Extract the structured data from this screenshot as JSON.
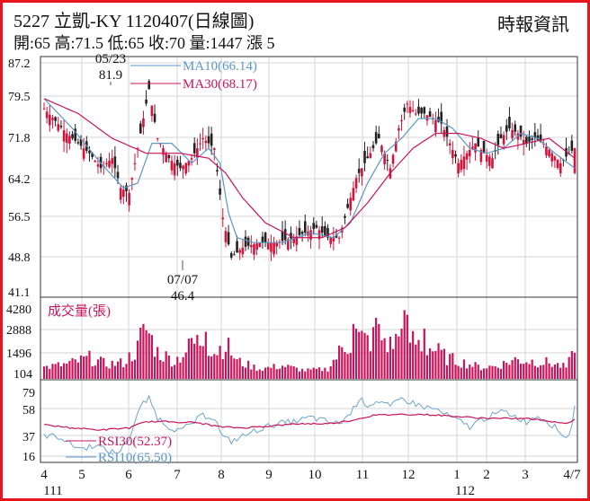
{
  "header": {
    "title": "5227  立凱-KY 1120407(日線圖)",
    "quote": "開:65 高:71.5 低:65 收:70 量:1447 漲 5",
    "source": "時報資訊"
  },
  "colors": {
    "frame": "#e8141e",
    "up_candle": "#d2143c",
    "down_candle": "#222222",
    "ma10": "#5b97c8",
    "ma30": "#c8145a",
    "volume": "#c8145a",
    "rsi10": "#6fa3cc",
    "rsi30": "#c8145a"
  },
  "chart_data": [
    {
      "type": "candlestick",
      "panel": "price",
      "y_ticks": [
        "87.2",
        "79.5",
        "71.8",
        "64.2",
        "56.5",
        "48.8",
        "41.1"
      ],
      "ylim": [
        41.1,
        87.2
      ],
      "grid": true,
      "x_ticks": [
        "4",
        "5",
        "6",
        "7",
        "8",
        "9",
        "10",
        "11",
        "12",
        "1",
        "2",
        "3",
        "4/7"
      ],
      "x_year_labels": [
        "111",
        "112"
      ],
      "legend": [
        "MA10(66.14)",
        "MA30(68.17)"
      ],
      "annotations": [
        {
          "date": "05/23",
          "value": "81.9"
        },
        {
          "date": "07/07",
          "value": "46.4"
        }
      ],
      "close_path": [
        [
          0,
          78
        ],
        [
          8,
          73
        ],
        [
          16,
          69
        ],
        [
          20,
          66
        ],
        [
          24,
          68
        ],
        [
          27,
          62
        ],
        [
          30,
          61
        ],
        [
          33,
          70
        ],
        [
          36,
          79
        ],
        [
          37,
          81.9
        ],
        [
          40,
          72
        ],
        [
          44,
          68
        ],
        [
          48,
          66
        ],
        [
          52,
          68
        ],
        [
          56,
          72
        ],
        [
          60,
          70
        ],
        [
          63,
          56
        ],
        [
          66,
          48
        ],
        [
          70,
          50
        ],
        [
          76,
          51
        ],
        [
          82,
          51
        ],
        [
          88,
          52
        ],
        [
          92,
          53
        ],
        [
          96,
          54
        ],
        [
          100,
          52
        ],
        [
          104,
          52
        ],
        [
          107,
          58
        ],
        [
          110,
          64
        ],
        [
          114,
          68
        ],
        [
          118,
          72
        ],
        [
          120,
          69
        ],
        [
          122,
          66
        ],
        [
          125,
          74
        ],
        [
          128,
          79
        ],
        [
          131,
          77
        ],
        [
          134,
          77
        ],
        [
          137,
          76
        ],
        [
          140,
          75
        ],
        [
          143,
          71
        ],
        [
          146,
          67
        ],
        [
          149,
          69
        ],
        [
          152,
          71
        ],
        [
          155,
          69
        ],
        [
          158,
          68
        ],
        [
          161,
          72
        ],
        [
          164,
          74
        ],
        [
          167,
          73
        ],
        [
          170,
          71
        ],
        [
          173,
          72
        ],
        [
          176,
          71
        ],
        [
          179,
          69
        ],
        [
          182,
          67
        ],
        [
          185,
          69
        ],
        [
          187,
          70
        ]
      ],
      "ma10_path": [
        [
          0,
          80
        ],
        [
          10,
          74
        ],
        [
          20,
          67
        ],
        [
          28,
          62
        ],
        [
          33,
          63
        ],
        [
          38,
          71
        ],
        [
          45,
          71
        ],
        [
          52,
          67
        ],
        [
          58,
          70
        ],
        [
          62,
          67
        ],
        [
          65,
          57
        ],
        [
          68,
          52
        ],
        [
          74,
          51
        ],
        [
          84,
          51
        ],
        [
          94,
          53
        ],
        [
          102,
          52
        ],
        [
          108,
          55
        ],
        [
          114,
          63
        ],
        [
          120,
          69
        ],
        [
          126,
          72
        ],
        [
          132,
          76
        ],
        [
          138,
          76
        ],
        [
          144,
          74
        ],
        [
          150,
          70
        ],
        [
          156,
          69
        ],
        [
          162,
          70
        ],
        [
          168,
          73
        ],
        [
          174,
          72
        ],
        [
          180,
          69
        ],
        [
          187,
          66
        ]
      ],
      "ma30_path": [
        [
          0,
          80
        ],
        [
          12,
          77
        ],
        [
          24,
          72
        ],
        [
          36,
          69
        ],
        [
          48,
          69
        ],
        [
          58,
          68
        ],
        [
          64,
          65
        ],
        [
          70,
          60
        ],
        [
          78,
          55
        ],
        [
          88,
          52
        ],
        [
          98,
          52
        ],
        [
          106,
          54
        ],
        [
          114,
          59
        ],
        [
          122,
          65
        ],
        [
          130,
          70
        ],
        [
          138,
          73
        ],
        [
          146,
          73
        ],
        [
          154,
          72
        ],
        [
          162,
          70
        ],
        [
          170,
          71
        ],
        [
          178,
          72
        ],
        [
          187,
          68
        ]
      ]
    },
    {
      "type": "bar",
      "panel": "volume",
      "title": "成交量(張)",
      "y_ticks": [
        "4280",
        "2888",
        "1496",
        "104"
      ],
      "ylim": [
        104,
        4280
      ],
      "last_value": 1447,
      "volume_path": [
        [
          0,
          500
        ],
        [
          8,
          700
        ],
        [
          16,
          1100
        ],
        [
          22,
          700
        ],
        [
          28,
          800
        ],
        [
          33,
          1700
        ],
        [
          35,
          3100
        ],
        [
          37,
          2600
        ],
        [
          40,
          1500
        ],
        [
          46,
          900
        ],
        [
          52,
          1900
        ],
        [
          56,
          2300
        ],
        [
          60,
          1500
        ],
        [
          64,
          2000
        ],
        [
          68,
          900
        ],
        [
          76,
          400
        ],
        [
          84,
          600
        ],
        [
          92,
          300
        ],
        [
          100,
          400
        ],
        [
          105,
          1700
        ],
        [
          110,
          2400
        ],
        [
          114,
          2200
        ],
        [
          118,
          2600
        ],
        [
          122,
          1900
        ],
        [
          126,
          2600
        ],
        [
          130,
          2200
        ],
        [
          134,
          1900
        ],
        [
          138,
          1600
        ],
        [
          142,
          1100
        ],
        [
          148,
          800
        ],
        [
          154,
          500
        ],
        [
          160,
          600
        ],
        [
          166,
          1000
        ],
        [
          172,
          900
        ],
        [
          178,
          800
        ],
        [
          184,
          500
        ],
        [
          187,
          1447
        ]
      ],
      "volume_peaks": [
        [
          35,
          3300
        ],
        [
          36,
          2900
        ],
        [
          37,
          2700
        ],
        [
          52,
          2400
        ],
        [
          57,
          2800
        ],
        [
          109,
          3300
        ],
        [
          110,
          3000
        ],
        [
          116,
          3100
        ],
        [
          117,
          3700
        ],
        [
          126,
          3000
        ],
        [
          127,
          4200
        ],
        [
          128,
          3900
        ],
        [
          134,
          3000
        ]
      ]
    },
    {
      "type": "line",
      "panel": "rsi",
      "y_ticks": [
        "79",
        "58",
        "37",
        "16"
      ],
      "ylim": [
        16,
        79
      ],
      "legend": [
        "RSI30(52.37)",
        "RSI10(65.50)"
      ],
      "rsi10_path": [
        [
          0,
          37
        ],
        [
          6,
          35
        ],
        [
          10,
          27
        ],
        [
          14,
          24
        ],
        [
          18,
          28
        ],
        [
          22,
          22
        ],
        [
          26,
          20
        ],
        [
          30,
          34
        ],
        [
          33,
          58
        ],
        [
          35,
          68
        ],
        [
          37,
          72
        ],
        [
          40,
          54
        ],
        [
          44,
          45
        ],
        [
          48,
          41
        ],
        [
          52,
          48
        ],
        [
          56,
          56
        ],
        [
          60,
          54
        ],
        [
          63,
          35
        ],
        [
          66,
          31
        ],
        [
          70,
          36
        ],
        [
          76,
          43
        ],
        [
          82,
          48
        ],
        [
          88,
          50
        ],
        [
          94,
          54
        ],
        [
          100,
          50
        ],
        [
          104,
          48
        ],
        [
          108,
          58
        ],
        [
          111,
          72
        ],
        [
          114,
          66
        ],
        [
          118,
          70
        ],
        [
          122,
          64
        ],
        [
          126,
          72
        ],
        [
          130,
          68
        ],
        [
          134,
          64
        ],
        [
          138,
          62
        ],
        [
          142,
          56
        ],
        [
          146,
          51
        ],
        [
          150,
          45
        ],
        [
          154,
          52
        ],
        [
          158,
          56
        ],
        [
          162,
          60
        ],
        [
          166,
          55
        ],
        [
          170,
          50
        ],
        [
          174,
          56
        ],
        [
          178,
          49
        ],
        [
          182,
          40
        ],
        [
          184,
          34
        ],
        [
          186,
          45
        ],
        [
          187,
          65.5
        ]
      ],
      "rsi30_path": [
        [
          0,
          47
        ],
        [
          10,
          44
        ],
        [
          20,
          42
        ],
        [
          30,
          44
        ],
        [
          36,
          50
        ],
        [
          44,
          50
        ],
        [
          54,
          49
        ],
        [
          62,
          45
        ],
        [
          70,
          44
        ],
        [
          80,
          46
        ],
        [
          90,
          48
        ],
        [
          100,
          48
        ],
        [
          108,
          51
        ],
        [
          116,
          56
        ],
        [
          124,
          57
        ],
        [
          132,
          57
        ],
        [
          140,
          56
        ],
        [
          150,
          54
        ],
        [
          160,
          53
        ],
        [
          170,
          53
        ],
        [
          180,
          50
        ],
        [
          184,
          48
        ],
        [
          187,
          52.37
        ]
      ]
    }
  ]
}
